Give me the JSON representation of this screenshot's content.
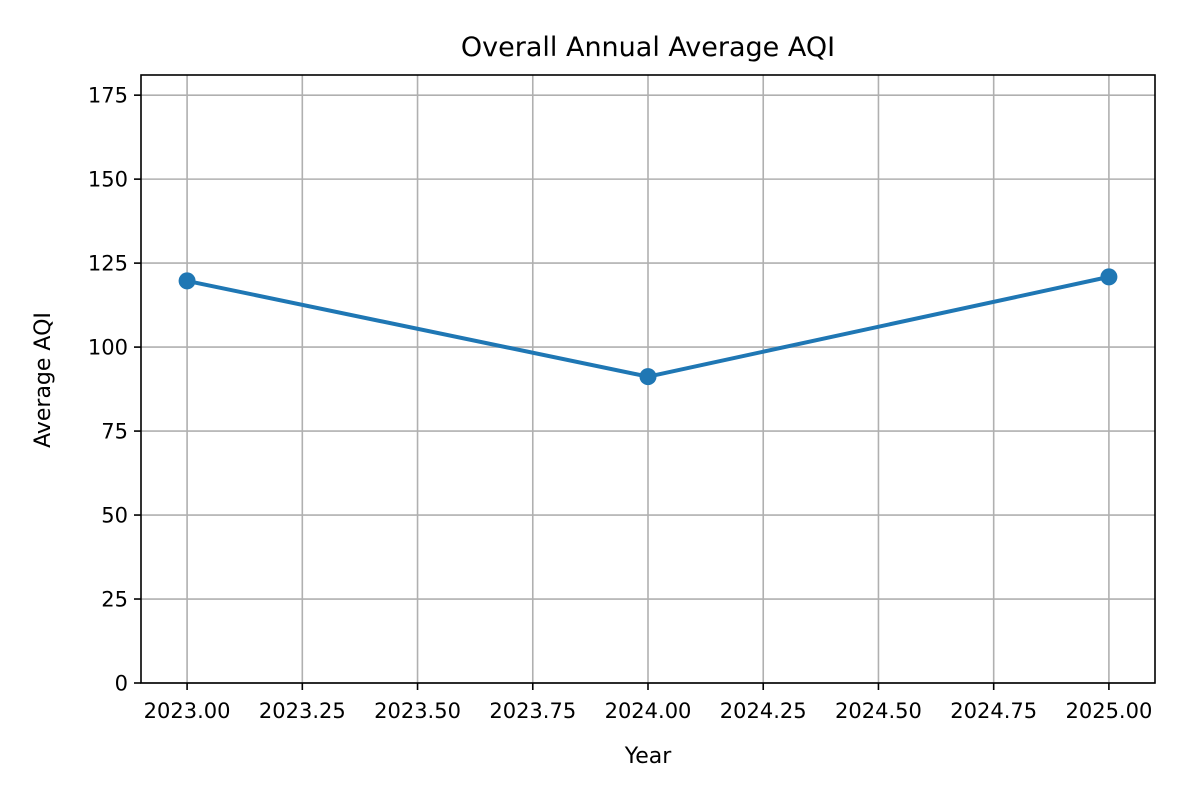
{
  "chart_data": {
    "type": "line",
    "title": "Overall Annual Average AQI",
    "xlabel": "Year",
    "ylabel": "Average AQI",
    "x": [
      2023,
      2024,
      2025
    ],
    "series": [
      {
        "values": [
          119.7,
          91.2,
          120.9
        ]
      }
    ],
    "xlim": [
      2022.9,
      2025.1
    ],
    "ylim": [
      0,
      181
    ],
    "xticks": [
      2023.0,
      2023.25,
      2023.5,
      2023.75,
      2024.0,
      2024.25,
      2024.5,
      2024.75,
      2025.0
    ],
    "xtick_labels": [
      "2023.00",
      "2023.25",
      "2023.50",
      "2023.75",
      "2024.00",
      "2024.25",
      "2024.50",
      "2024.75",
      "2025.00"
    ],
    "yticks": [
      0,
      25,
      50,
      75,
      100,
      125,
      150,
      175
    ],
    "ytick_labels": [
      "0",
      "25",
      "50",
      "75",
      "100",
      "125",
      "150",
      "175"
    ],
    "grid": true,
    "colors": {
      "line": "#1f77b4",
      "grid": "#b0b0b0",
      "axes": "#000000"
    }
  }
}
